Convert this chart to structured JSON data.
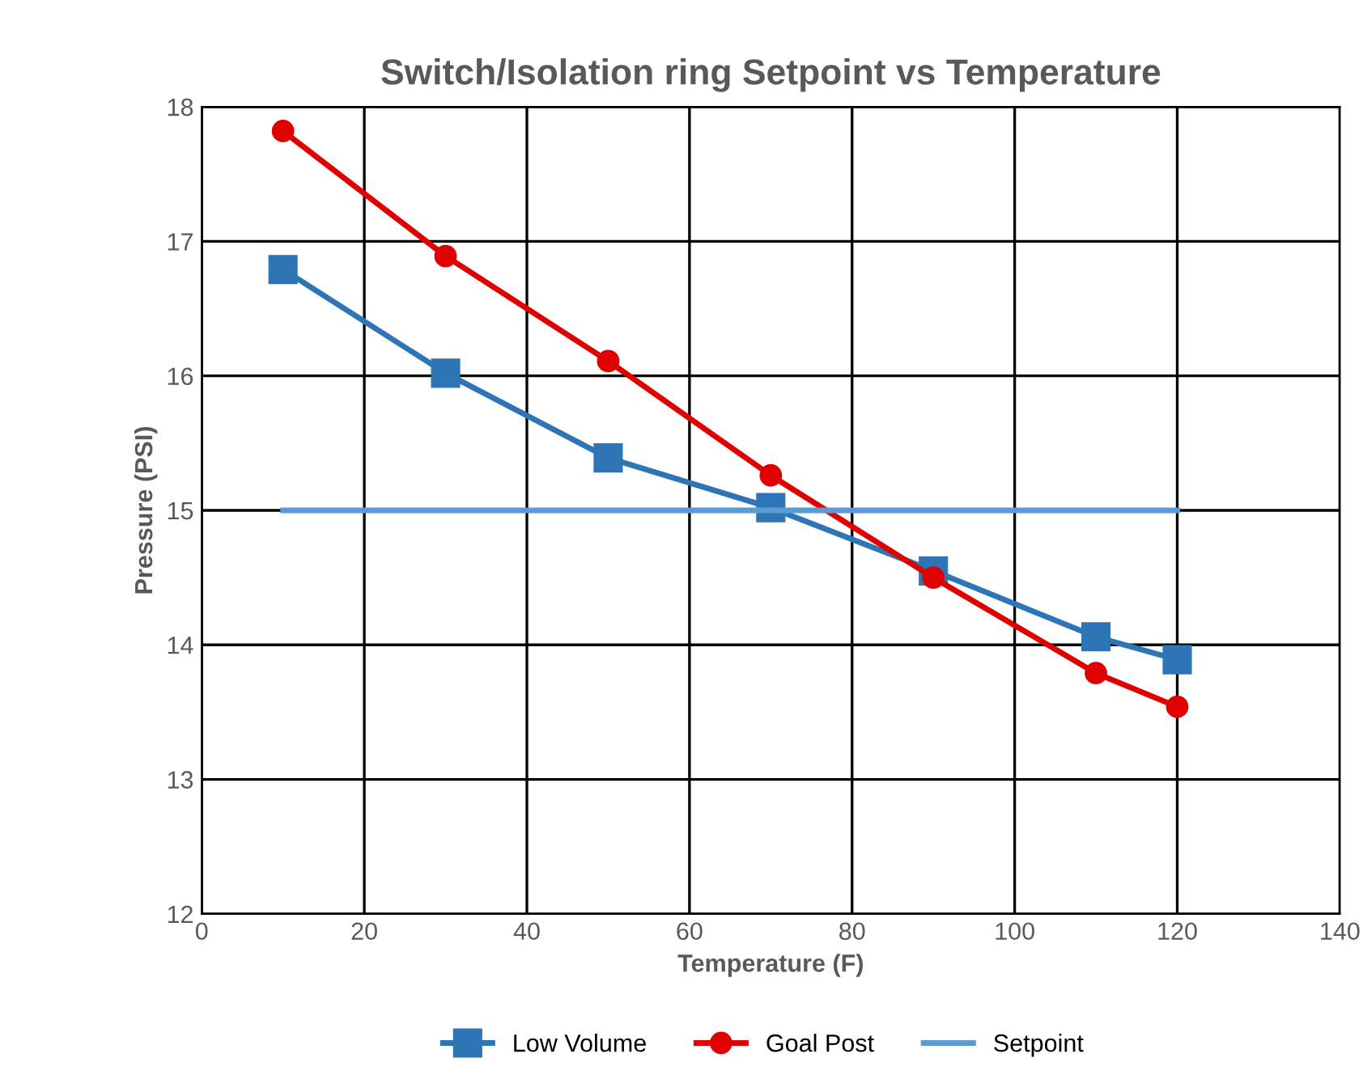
{
  "chart_data": {
    "type": "line",
    "title": "Switch/Isolation ring Setpoint vs Temperature",
    "xlabel": "Temperature (F)",
    "ylabel": "Pressure (PSI)",
    "x": [
      10,
      30,
      50,
      70,
      90,
      110,
      120
    ],
    "series": [
      {
        "name": "Low Volume",
        "color": "#2e75b6",
        "marker": "square",
        "values": [
          16.79,
          16.02,
          15.39,
          15.02,
          14.55,
          14.06,
          13.89
        ]
      },
      {
        "name": "Goal Post",
        "color": "#e00000",
        "marker": "circle",
        "values": [
          17.82,
          16.89,
          16.11,
          15.26,
          14.5,
          13.79,
          13.54
        ]
      },
      {
        "name": "Setpoint",
        "color": "#5b9bd5",
        "marker": "none",
        "x": [
          10,
          120
        ],
        "values": [
          15,
          15
        ]
      }
    ],
    "xlim": [
      0,
      140
    ],
    "xticks": [
      0,
      20,
      40,
      60,
      80,
      100,
      120,
      140
    ],
    "ylim": [
      12,
      18
    ],
    "yticks": [
      12,
      13,
      14,
      15,
      16,
      17,
      18
    ],
    "grid": true,
    "legend": "bottom",
    "line_style": "solid"
  }
}
